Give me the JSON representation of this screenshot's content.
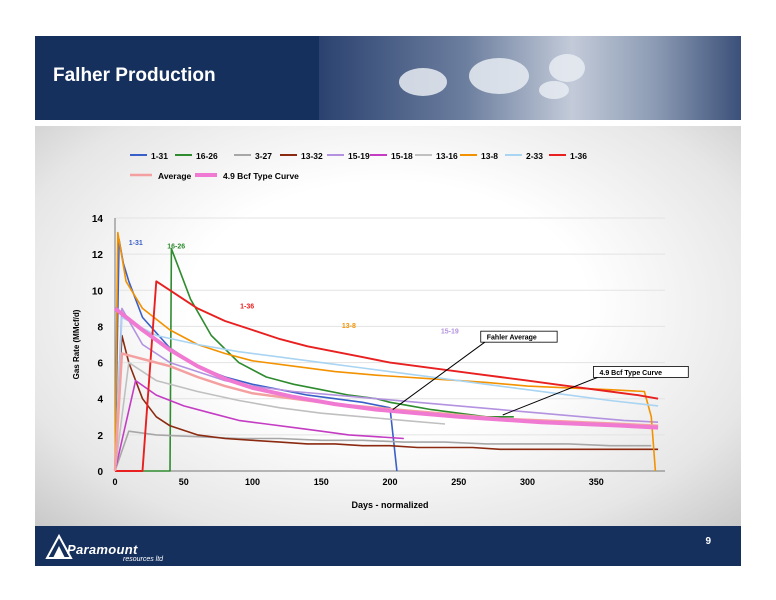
{
  "slide": {
    "title": "Falher Production",
    "page_number": "9"
  },
  "logo": {
    "word": "Paramount",
    "sub": "resources ltd"
  },
  "colors": {
    "header_bg": "#16305e",
    "average": "#f4a0a0",
    "type_curve": "#f07ad2"
  },
  "chart_data": {
    "type": "line",
    "title": "",
    "xlabel": "Days - normalized",
    "ylabel": "Gas Rate (MMcf/d)",
    "xlim": [
      0,
      400
    ],
    "ylim": [
      0,
      14
    ],
    "x_ticks": [
      0,
      50,
      100,
      150,
      200,
      250,
      300,
      350
    ],
    "y_ticks": [
      0,
      2,
      4,
      6,
      8,
      10,
      12,
      14
    ],
    "grid": true,
    "legend_position": "top",
    "series": [
      {
        "name": "1-31",
        "color": "#3a5fc8",
        "x": [
          0,
          3,
          6,
          10,
          20,
          40,
          60,
          80,
          100,
          120,
          140,
          160,
          180,
          200,
          205
        ],
        "y": [
          0,
          12.8,
          11.5,
          10.5,
          8.5,
          6.8,
          5.8,
          5.2,
          4.8,
          4.5,
          4.2,
          4.0,
          3.8,
          3.5,
          0
        ]
      },
      {
        "name": "16-26",
        "color": "#2e8b2e",
        "x": [
          0,
          40,
          41,
          45,
          55,
          70,
          90,
          110,
          130,
          150,
          170,
          190,
          200,
          215,
          230,
          250,
          270,
          290
        ],
        "y": [
          0,
          0,
          12.3,
          11.5,
          9.5,
          7.5,
          6.0,
          5.2,
          4.8,
          4.5,
          4.2,
          4.0,
          3.8,
          3.6,
          3.4,
          3.2,
          3.0,
          3.0
        ]
      },
      {
        "name": "3-27",
        "color": "#a7a7a7",
        "x": [
          0,
          10,
          30,
          60,
          90,
          120,
          150,
          180,
          210,
          240,
          270,
          300,
          330,
          360,
          390
        ],
        "y": [
          0,
          2.2,
          2.0,
          1.9,
          1.8,
          1.8,
          1.7,
          1.7,
          1.6,
          1.6,
          1.5,
          1.5,
          1.5,
          1.4,
          1.4
        ]
      },
      {
        "name": "13-32",
        "color": "#8b2a10",
        "x": [
          0,
          5,
          10,
          20,
          30,
          40,
          60,
          80,
          100,
          120,
          140,
          160,
          180,
          200,
          220,
          240,
          260,
          280,
          300,
          330,
          360,
          395
        ],
        "y": [
          0,
          7.5,
          6.0,
          4.0,
          3.0,
          2.5,
          2.0,
          1.8,
          1.7,
          1.6,
          1.5,
          1.5,
          1.4,
          1.4,
          1.3,
          1.3,
          1.3,
          1.2,
          1.2,
          1.2,
          1.2,
          1.2
        ]
      },
      {
        "name": "15-19",
        "color": "#b392e0",
        "x": [
          0,
          5,
          20,
          40,
          60,
          80,
          100,
          130,
          160,
          190,
          220,
          250,
          280,
          310,
          340,
          370,
          395
        ],
        "y": [
          0,
          9.0,
          7.0,
          6.0,
          5.5,
          5.0,
          4.7,
          4.4,
          4.2,
          4.0,
          3.8,
          3.6,
          3.4,
          3.2,
          3.0,
          2.8,
          2.7
        ]
      },
      {
        "name": "15-18",
        "color": "#c43cc4",
        "x": [
          0,
          15,
          30,
          50,
          70,
          90,
          110,
          130,
          150,
          170,
          190,
          210
        ],
        "y": [
          0,
          5.0,
          4.2,
          3.6,
          3.2,
          2.8,
          2.6,
          2.4,
          2.2,
          2.0,
          1.9,
          1.8
        ]
      },
      {
        "name": "13-16",
        "color": "#c0c0c0",
        "x": [
          0,
          10,
          30,
          60,
          90,
          120,
          150,
          180,
          210,
          240
        ],
        "y": [
          0,
          6.0,
          5.0,
          4.4,
          3.9,
          3.5,
          3.2,
          3.0,
          2.8,
          2.6
        ]
      },
      {
        "name": "13-8",
        "color": "#f39200",
        "x": [
          0,
          2,
          8,
          20,
          40,
          60,
          80,
          100,
          130,
          160,
          190,
          210,
          230,
          250,
          270,
          300,
          330,
          360,
          385,
          390,
          393
        ],
        "y": [
          0,
          13.2,
          10.5,
          9.0,
          7.8,
          7.0,
          6.5,
          6.1,
          5.8,
          5.5,
          5.3,
          5.2,
          5.1,
          5.0,
          4.9,
          4.7,
          4.6,
          4.5,
          4.4,
          3.0,
          0
        ]
      },
      {
        "name": "2-33",
        "color": "#a9d4f2",
        "x": [
          0,
          5,
          30,
          60,
          90,
          120,
          150,
          180,
          210,
          240,
          270,
          300,
          330,
          360,
          395
        ],
        "y": [
          0,
          8.5,
          7.5,
          7.0,
          6.6,
          6.3,
          6.0,
          5.7,
          5.4,
          5.1,
          4.8,
          4.5,
          4.2,
          3.9,
          3.6
        ]
      },
      {
        "name": "1-36",
        "color": "#e82020",
        "x": [
          0,
          20,
          30,
          40,
          60,
          80,
          100,
          120,
          140,
          160,
          180,
          200,
          220,
          240,
          260,
          280,
          300,
          320,
          340,
          360,
          380,
          395
        ],
        "y": [
          0,
          0,
          10.5,
          10.0,
          9.0,
          8.3,
          7.8,
          7.3,
          6.9,
          6.6,
          6.3,
          6.0,
          5.8,
          5.6,
          5.4,
          5.2,
          5.0,
          4.8,
          4.6,
          4.4,
          4.2,
          4.0
        ]
      },
      {
        "name": "Average",
        "color": "#f4a0a0",
        "x": [
          0,
          5,
          20,
          40,
          60,
          80,
          100,
          130,
          160,
          190,
          220,
          250,
          280,
          310,
          340,
          370,
          395
        ],
        "y": [
          0,
          6.5,
          6.2,
          5.8,
          5.2,
          4.7,
          4.3,
          4.0,
          3.7,
          3.5,
          3.3,
          3.1,
          2.9,
          2.8,
          2.7,
          2.6,
          2.5
        ]
      },
      {
        "name": "4.9 Bcf Type Curve",
        "color": "#f07ad2",
        "x": [
          0,
          20,
          40,
          60,
          80,
          100,
          130,
          160,
          190,
          220,
          250,
          280,
          310,
          340,
          370,
          395
        ],
        "y": [
          9.0,
          7.8,
          6.7,
          5.8,
          5.1,
          4.6,
          4.1,
          3.7,
          3.4,
          3.2,
          3.0,
          2.85,
          2.7,
          2.6,
          2.5,
          2.4
        ]
      }
    ],
    "line_labels": [
      {
        "text": "1-31",
        "x": 10,
        "y": 12.5,
        "color": "#3a5fc8"
      },
      {
        "text": "16-26",
        "x": 38,
        "y": 12.3,
        "color": "#2e8b2e"
      },
      {
        "text": "1-36",
        "x": 91,
        "y": 9.0,
        "color": "#e82020"
      },
      {
        "text": "13-8",
        "x": 165,
        "y": 7.9,
        "color": "#f39200"
      },
      {
        "text": "15-19",
        "x": 237,
        "y": 7.6,
        "color": "#b392e0"
      }
    ],
    "annotations": [
      {
        "text": "Fahler Average",
        "box_x": 266,
        "box_y": 7.35,
        "arrow_to_x": 202,
        "arrow_to_y": 3.4
      },
      {
        "text": "4.9 Bcf Type Curve",
        "box_x": 348,
        "box_y": 5.4,
        "arrow_to_x": 282,
        "arrow_to_y": 3.1
      }
    ]
  }
}
